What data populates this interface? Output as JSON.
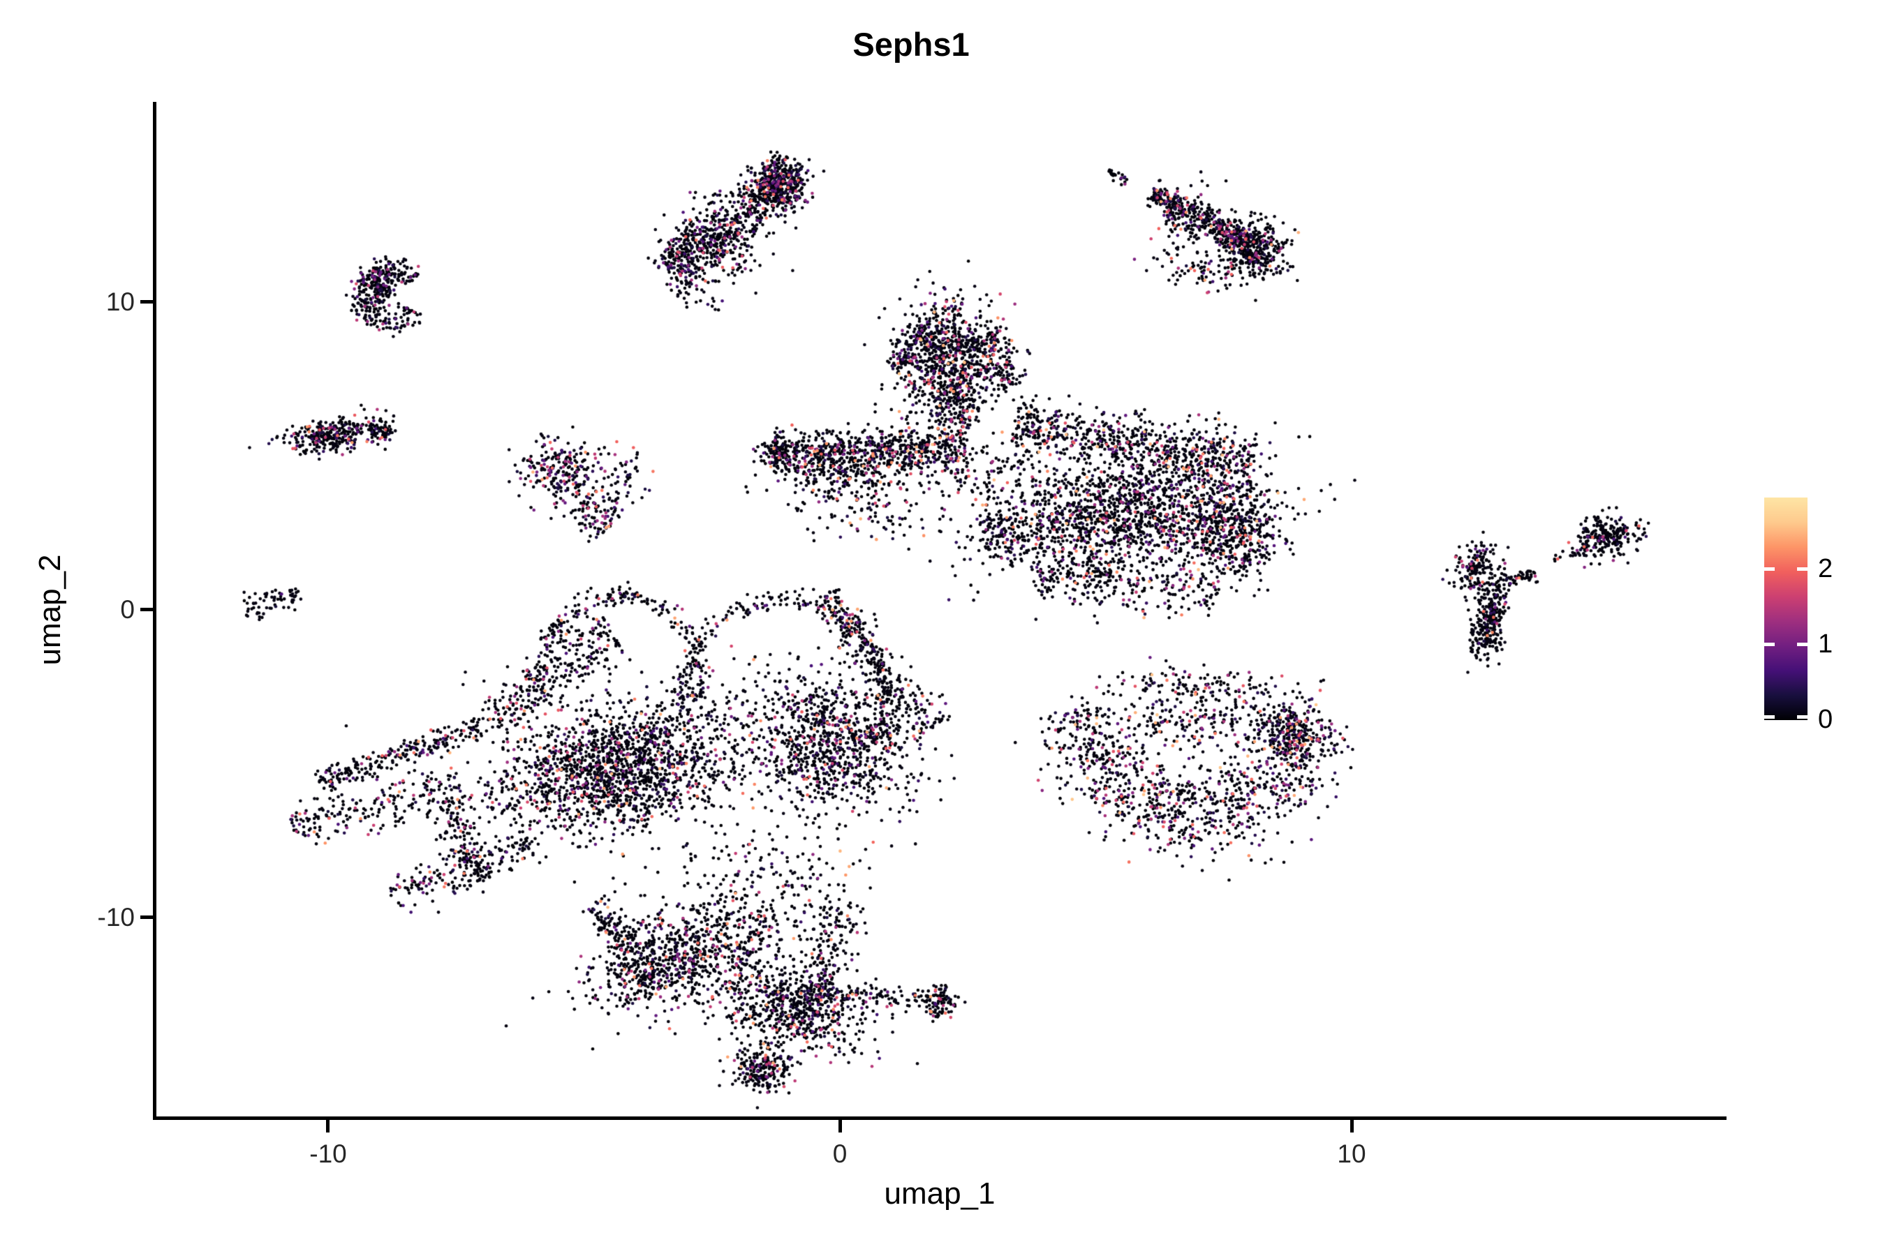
{
  "title": "Sephs1",
  "x_axis": {
    "label": "umap_1",
    "ticks": [
      "-10",
      "0",
      "10"
    ]
  },
  "y_axis": {
    "label": "umap_2",
    "ticks": [
      "10",
      "0",
      "-10"
    ]
  },
  "colorbar": {
    "tick_labels": [
      "2",
      "1",
      "0"
    ],
    "tick_values": [
      2,
      1,
      0
    ],
    "value_range": [
      0,
      2.95
    ],
    "gradient_bottom_to_top": [
      "#000004",
      "#180f3e",
      "#451077",
      "#721f81",
      "#9f2f7f",
      "#cd4071",
      "#f1605d",
      "#fd9567",
      "#feca8d",
      "#fee5a5"
    ]
  },
  "chart_data": {
    "type": "scatter",
    "title": "Sephs1",
    "xlabel": "umap_1",
    "ylabel": "umap_2",
    "x_ticks": [
      -10,
      0,
      10
    ],
    "y_ticks": [
      -10,
      0,
      10
    ],
    "xlim": [
      -13.4,
      17.3
    ],
    "ylim": [
      -16.5,
      16.5
    ],
    "colormap": "magma",
    "color_range": [
      0,
      2.95
    ],
    "legend_position": "right",
    "grid": false,
    "point_radius_px": 2.3,
    "description": "UMAP feature plot of Sephs1 expression; ~17000 cells, mostly zero expression (near-black) with scattered cells up to ~2.7",
    "clusters": [
      {
        "name": "top-center",
        "cf": 0.22,
        "vmax": 2.3,
        "shapes": [
          {
            "kind": "streak",
            "x1": -3.32,
            "y1": 10.95,
            "x2": -0.87,
            "y2": 14.24,
            "w": 0.28,
            "n": 650
          },
          {
            "kind": "blob",
            "x": -1.21,
            "y": 13.85,
            "rx": 0.55,
            "ry": 0.75,
            "rot": -30,
            "n": 280
          },
          {
            "kind": "streak",
            "x1": -3.46,
            "y1": 10.72,
            "x2": -1.96,
            "y2": 12.31,
            "w": 0.5,
            "n": 150
          },
          {
            "kind": "blob",
            "x": -2.6,
            "y": 11.8,
            "rx": 1.0,
            "ry": 1.2,
            "rot": 0,
            "n": 60
          }
        ]
      },
      {
        "name": "top-right",
        "cf": 0.18,
        "vmax": 2.6,
        "shapes": [
          {
            "kind": "streak",
            "x1": 5.26,
            "y1": 14.29,
            "x2": 5.63,
            "y2": 13.83,
            "w": 0.08,
            "n": 22
          },
          {
            "kind": "streak",
            "x1": 6.08,
            "y1": 13.56,
            "x2": 8.05,
            "y2": 11.86,
            "w": 0.13,
            "n": 380
          },
          {
            "kind": "blob",
            "x": 8.12,
            "y": 11.7,
            "rx": 0.5,
            "ry": 0.9,
            "rot": -35,
            "n": 320
          },
          {
            "kind": "streak",
            "x1": 6.35,
            "y1": 12.9,
            "x2": 7.9,
            "y2": 11.2,
            "w": 0.45,
            "n": 160
          },
          {
            "kind": "blob",
            "x": 7.0,
            "y": 11.0,
            "rx": 0.5,
            "ry": 0.4,
            "rot": 0,
            "n": 30
          }
        ]
      },
      {
        "name": "left-hook",
        "cf": 0.22,
        "vmax": 1.9,
        "shapes": [
          {
            "kind": "arc",
            "x": -8.8,
            "y": 10.2,
            "r": 0.55,
            "a1": 30,
            "a2": 330,
            "w": 0.13,
            "n": 260
          },
          {
            "kind": "blob",
            "x": -9.0,
            "y": 10.5,
            "rx": 0.3,
            "ry": 0.6,
            "rot": 0,
            "n": 120
          }
        ]
      },
      {
        "name": "left-small",
        "cf": 0.2,
        "vmax": 2.5,
        "shapes": [
          {
            "kind": "blob",
            "x": -9.95,
            "y": 5.65,
            "rx": 0.8,
            "ry": 0.5,
            "rot": -8,
            "n": 300
          },
          {
            "kind": "streak",
            "x1": -9.2,
            "y1": 5.85,
            "x2": -8.75,
            "y2": 5.75,
            "w": 0.1,
            "n": 60
          }
        ]
      },
      {
        "name": "left-mid",
        "cf": 0.28,
        "vmax": 2.6,
        "shapes": [
          {
            "kind": "blob",
            "x": -5.45,
            "y": 4.55,
            "rx": 0.75,
            "ry": 1.0,
            "rot": 0,
            "n": 240
          },
          {
            "kind": "streak",
            "x1": -5.0,
            "y1": 3.6,
            "x2": -4.5,
            "y2": 2.7,
            "w": 0.25,
            "n": 90
          },
          {
            "kind": "blob",
            "x": -4.3,
            "y": 4.3,
            "rx": 0.6,
            "ry": 0.9,
            "rot": 0,
            "n": 50
          }
        ]
      },
      {
        "name": "far-left-tiny",
        "cf": 0.07,
        "vmax": 1.2,
        "shapes": [
          {
            "kind": "streak",
            "x1": -11.66,
            "y1": 0.2,
            "x2": -10.55,
            "y2": 0.5,
            "w": 0.1,
            "n": 60
          },
          {
            "kind": "blob",
            "x": -11.3,
            "y": -0.15,
            "rx": 0.15,
            "ry": 0.15,
            "rot": 0,
            "n": 8
          }
        ]
      },
      {
        "name": "central-mass",
        "cf": 0.2,
        "vmax": 2.7,
        "shapes": [
          {
            "kind": "blob",
            "x": 2.13,
            "y": 8.35,
            "rx": 0.85,
            "ry": 1.6,
            "rot": 15,
            "n": 650
          },
          {
            "kind": "streak",
            "x1": 1.05,
            "y1": 7.8,
            "x2": 1.75,
            "y2": 9.05,
            "w": 0.16,
            "n": 110
          },
          {
            "kind": "streak",
            "x1": 2.95,
            "y1": 9.0,
            "x2": 3.3,
            "y2": 7.2,
            "w": 0.18,
            "n": 120
          },
          {
            "kind": "streak",
            "x1": 2.0,
            "y1": 7.1,
            "x2": 2.5,
            "y2": 5.8,
            "w": 0.3,
            "n": 140
          },
          {
            "kind": "blob",
            "x": 2.2,
            "y": 7.6,
            "rx": 1.3,
            "ry": 1.9,
            "rot": 0,
            "n": 140
          },
          {
            "kind": "streak",
            "x1": -1.35,
            "y1": 5.1,
            "x2": 2.5,
            "y2": 5.25,
            "w": 0.22,
            "n": 650
          },
          {
            "kind": "streak",
            "x1": -0.9,
            "y1": 4.5,
            "x2": 1.4,
            "y2": 4.55,
            "w": 0.3,
            "n": 180
          },
          {
            "kind": "blob",
            "x": 0.2,
            "y": 4.0,
            "rx": 1.6,
            "ry": 0.9,
            "rot": 0,
            "n": 100
          },
          {
            "kind": "blob",
            "x": -1.3,
            "y": 5.1,
            "rx": 0.3,
            "ry": 0.5,
            "rot": 0,
            "n": 70
          },
          {
            "kind": "blob",
            "x": 0.6,
            "y": 2.9,
            "rx": 1.0,
            "ry": 0.8,
            "rot": 0,
            "n": 60
          },
          {
            "kind": "streak",
            "x1": 3.4,
            "y1": 5.95,
            "x2": 8.1,
            "y2": 4.8,
            "w": 0.28,
            "n": 700
          },
          {
            "kind": "blob",
            "x": 5.6,
            "y": 3.1,
            "rx": 2.5,
            "ry": 1.7,
            "rot": -5,
            "n": 1500
          },
          {
            "kind": "blob",
            "x": 7.7,
            "y": 2.6,
            "rx": 0.8,
            "ry": 1.5,
            "rot": 10,
            "n": 450
          },
          {
            "kind": "streak",
            "x1": 3.8,
            "y1": 1.2,
            "x2": 7.4,
            "y2": 0.55,
            "w": 0.25,
            "n": 260
          },
          {
            "kind": "blob",
            "x": 3.2,
            "y": 2.4,
            "rx": 0.6,
            "ry": 0.9,
            "rot": 0,
            "n": 120
          },
          {
            "kind": "blob",
            "x": 2.9,
            "y": 4.6,
            "rx": 0.8,
            "ry": 0.8,
            "rot": 0,
            "n": 70
          }
        ]
      },
      {
        "name": "lower-left-giant",
        "cf": 0.18,
        "vmax": 2.6,
        "shapes": [
          {
            "kind": "arc",
            "x": -4.28,
            "y": -2.1,
            "r": 1.55,
            "a1": -20,
            "a2": 200,
            "w": 0.1,
            "n": 230
          },
          {
            "kind": "arc",
            "x": -1.1,
            "y": -2.9,
            "r": 1.95,
            "a1": -25,
            "a2": 190,
            "w": 0.1,
            "n": 280
          },
          {
            "kind": "streak",
            "x1": -6.9,
            "y1": -3.6,
            "x2": -4.4,
            "y2": -0.75,
            "w": 0.3,
            "n": 280
          },
          {
            "kind": "streak",
            "x1": -10.2,
            "y1": -5.6,
            "x2": -6.9,
            "y2": -3.7,
            "w": 0.12,
            "n": 240
          },
          {
            "kind": "streak",
            "x1": -10.7,
            "y1": -7.1,
            "x2": -7.4,
            "y2": -5.6,
            "w": 0.22,
            "n": 210
          },
          {
            "kind": "streak",
            "x1": -7.7,
            "y1": -6.1,
            "x2": -7.0,
            "y2": -8.8,
            "w": 0.22,
            "n": 150
          },
          {
            "kind": "blob",
            "x": -4.4,
            "y": -5.2,
            "rx": 2.2,
            "ry": 1.7,
            "rot": -12,
            "n": 1500
          },
          {
            "kind": "streak",
            "x1": -8.8,
            "y1": -9.3,
            "x2": -6.0,
            "y2": -7.6,
            "w": 0.2,
            "n": 170
          },
          {
            "kind": "blob",
            "x": -0.1,
            "y": -4.3,
            "rx": 1.5,
            "ry": 2.0,
            "rot": 25,
            "n": 950
          },
          {
            "kind": "streak",
            "x1": 0.2,
            "y1": -0.6,
            "x2": 1.9,
            "y2": -3.9,
            "w": 0.2,
            "n": 180
          },
          {
            "kind": "streak",
            "x1": -0.3,
            "y1": 0.5,
            "x2": 0.3,
            "y2": -0.7,
            "w": 0.15,
            "n": 80
          },
          {
            "kind": "blob",
            "x": -3.5,
            "y": -4.5,
            "rx": 3.0,
            "ry": 2.6,
            "rot": 0,
            "n": 280
          },
          {
            "kind": "blob",
            "x": -2.9,
            "y": -11.1,
            "rx": 1.9,
            "ry": 1.5,
            "rot": -20,
            "n": 850
          },
          {
            "kind": "blob",
            "x": -0.9,
            "y": -12.9,
            "rx": 1.4,
            "ry": 1.3,
            "rot": 15,
            "n": 600
          },
          {
            "kind": "blob",
            "x": -1.5,
            "y": -14.9,
            "rx": 0.5,
            "ry": 0.65,
            "rot": 0,
            "n": 220
          },
          {
            "kind": "streak",
            "x1": -4.8,
            "y1": -9.5,
            "x2": -3.6,
            "y2": -12.4,
            "w": 0.2,
            "n": 200
          },
          {
            "kind": "streak",
            "x1": 0.2,
            "y1": -9.5,
            "x2": -0.9,
            "y2": -13.8,
            "w": 0.25,
            "n": 200
          },
          {
            "kind": "streak",
            "x1": -0.7,
            "y1": -12.4,
            "x2": 1.8,
            "y2": -12.65,
            "w": 0.1,
            "n": 130
          },
          {
            "kind": "blob",
            "x": 1.95,
            "y": -12.7,
            "rx": 0.3,
            "ry": 0.5,
            "rot": 0,
            "n": 90
          },
          {
            "kind": "blob",
            "x": -1.5,
            "y": -8.5,
            "rx": 1.8,
            "ry": 1.2,
            "rot": 0,
            "n": 120
          }
        ]
      },
      {
        "name": "bottom-right-crescent",
        "cf": 0.3,
        "vmax": 2.7,
        "shapes": [
          {
            "kind": "arc",
            "x": 6.95,
            "y": -2.9,
            "r": 2.3,
            "a1": 185,
            "a2": 350,
            "w": 0.45,
            "n": 1000
          },
          {
            "kind": "blob",
            "x": 8.85,
            "y": -3.9,
            "rx": 0.55,
            "ry": 1.0,
            "rot": -20,
            "n": 220
          },
          {
            "kind": "blob",
            "x": 6.9,
            "y": -3.6,
            "rx": 1.7,
            "ry": 1.0,
            "rot": 0,
            "n": 220
          },
          {
            "kind": "blob",
            "x": 7.0,
            "y": -2.5,
            "rx": 1.6,
            "ry": 0.6,
            "rot": 0,
            "n": 120
          }
        ]
      },
      {
        "name": "far-right",
        "cf": 0.12,
        "vmax": 2.4,
        "shapes": [
          {
            "kind": "blob",
            "x": 12.45,
            "y": 1.35,
            "rx": 0.45,
            "ry": 0.8,
            "rot": 30,
            "n": 150
          },
          {
            "kind": "blob",
            "x": 12.8,
            "y": 0.55,
            "rx": 0.3,
            "ry": 0.6,
            "rot": 0,
            "n": 90
          },
          {
            "kind": "blob",
            "x": 12.65,
            "y": -0.75,
            "rx": 0.32,
            "ry": 0.75,
            "rot": 0,
            "n": 170
          },
          {
            "kind": "streak",
            "x1": 12.75,
            "y1": 0.1,
            "x2": 12.7,
            "y2": -0.35,
            "w": 0.1,
            "n": 40
          },
          {
            "kind": "streak",
            "x1": 13.0,
            "y1": 0.9,
            "x2": 13.6,
            "y2": 1.15,
            "w": 0.07,
            "n": 45
          },
          {
            "kind": "blob",
            "x": 15.0,
            "y": 2.35,
            "rx": 0.62,
            "ry": 0.55,
            "rot": -15,
            "n": 230
          },
          {
            "kind": "streak",
            "x1": 13.95,
            "y1": 1.65,
            "x2": 14.6,
            "y2": 2.1,
            "w": 0.05,
            "n": 18
          },
          {
            "kind": "blob",
            "x": 14.8,
            "y": 2.9,
            "rx": 0.15,
            "ry": 0.2,
            "rot": 0,
            "n": 10
          }
        ]
      }
    ]
  }
}
